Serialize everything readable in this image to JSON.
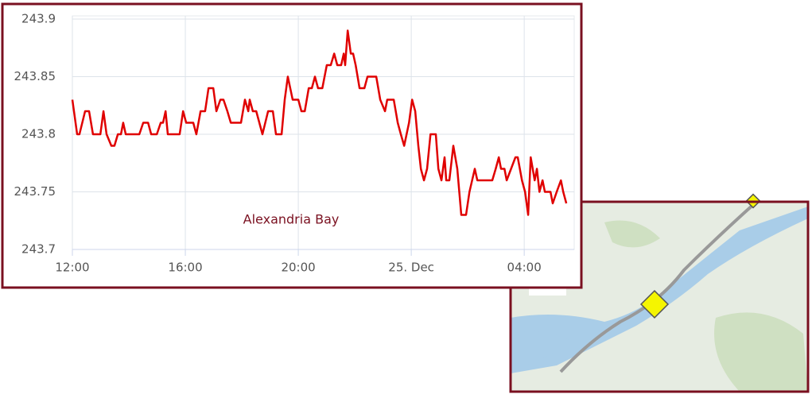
{
  "chart_data": {
    "type": "line",
    "annotation": "Alexandria Bay",
    "color": "#e00000",
    "x": [
      0,
      0.17,
      0.25,
      0.45,
      0.59,
      0.73,
      0.99,
      1.1,
      1.21,
      1.38,
      1.49,
      1.61,
      1.72,
      1.8,
      1.89,
      2.37,
      2.51,
      2.68,
      2.79,
      2.99,
      3.13,
      3.21,
      3.3,
      3.38,
      3.8,
      3.92,
      4.03,
      4.28,
      4.39,
      4.54,
      4.7,
      4.82,
      4.99,
      5.1,
      5.24,
      5.35,
      5.49,
      5.61,
      5.97,
      6.11,
      6.23,
      6.28,
      6.39,
      6.51,
      6.73,
      6.93,
      7.1,
      7.21,
      7.41,
      7.52,
      7.63,
      7.8,
      8.0,
      8.11,
      8.23,
      8.37,
      8.48,
      8.59,
      8.7,
      8.85,
      9.01,
      9.15,
      9.27,
      9.38,
      9.52,
      9.61,
      9.66,
      9.75,
      9.86,
      9.94,
      10.03,
      10.17,
      10.34,
      10.45,
      10.76,
      10.9,
      11.07,
      11.15,
      11.38,
      11.52,
      11.63,
      11.75,
      11.92,
      12.03,
      12.14,
      12.25,
      12.34,
      12.45,
      12.56,
      12.68,
      12.87,
      12.96,
      13.07,
      13.18,
      13.24,
      13.35,
      13.49,
      13.63,
      13.77,
      13.94,
      14.06,
      14.25,
      14.34,
      14.87,
      14.99,
      15.1,
      15.18,
      15.3,
      15.38,
      15.69,
      15.77,
      15.92,
      16.03,
      16.14,
      16.23,
      16.37,
      16.45,
      16.54,
      16.65,
      16.73,
      16.93,
      17.01,
      17.15,
      17.3,
      17.38,
      17.49
    ],
    "values": [
      243.83,
      243.8,
      243.8,
      243.82,
      243.82,
      243.8,
      243.8,
      243.82,
      243.8,
      243.79,
      243.79,
      243.8,
      243.8,
      243.81,
      243.8,
      243.8,
      243.81,
      243.81,
      243.8,
      243.8,
      243.81,
      243.81,
      243.82,
      243.8,
      243.8,
      243.82,
      243.81,
      243.81,
      243.8,
      243.82,
      243.82,
      243.84,
      243.84,
      243.82,
      243.83,
      243.83,
      243.82,
      243.81,
      243.81,
      243.83,
      243.82,
      243.83,
      243.82,
      243.82,
      243.8,
      243.82,
      243.82,
      243.8,
      243.8,
      243.83,
      243.85,
      243.83,
      243.83,
      243.82,
      243.82,
      243.84,
      243.84,
      243.85,
      243.84,
      243.84,
      243.86,
      243.86,
      243.87,
      243.86,
      243.86,
      243.87,
      243.86,
      243.89,
      243.87,
      243.87,
      243.86,
      243.84,
      243.84,
      243.85,
      243.85,
      243.83,
      243.82,
      243.83,
      243.83,
      243.81,
      243.8,
      243.79,
      243.81,
      243.83,
      243.82,
      243.79,
      243.77,
      243.76,
      243.77,
      243.8,
      243.8,
      243.77,
      243.76,
      243.78,
      243.76,
      243.76,
      243.79,
      243.77,
      243.73,
      243.73,
      243.75,
      243.77,
      243.76,
      243.76,
      243.77,
      243.78,
      243.77,
      243.77,
      243.76,
      243.78,
      243.78,
      243.76,
      243.75,
      243.73,
      243.78,
      243.76,
      243.77,
      243.75,
      243.76,
      243.75,
      243.75,
      243.74,
      243.75,
      243.76,
      243.75,
      243.74
    ],
    "xlim": [
      0,
      17.77
    ],
    "xticks": [
      {
        "value": 0,
        "label": "12:00"
      },
      {
        "value": 4,
        "label": "16:00"
      },
      {
        "value": 8,
        "label": "20:00"
      },
      {
        "value": 12,
        "label": "25. Dec"
      },
      {
        "value": 16,
        "label": "04:00"
      }
    ],
    "ylim": [
      243.7,
      243.9
    ],
    "yticks": [
      243.7,
      243.75,
      243.8,
      243.85,
      243.9
    ],
    "grid": true
  }
}
